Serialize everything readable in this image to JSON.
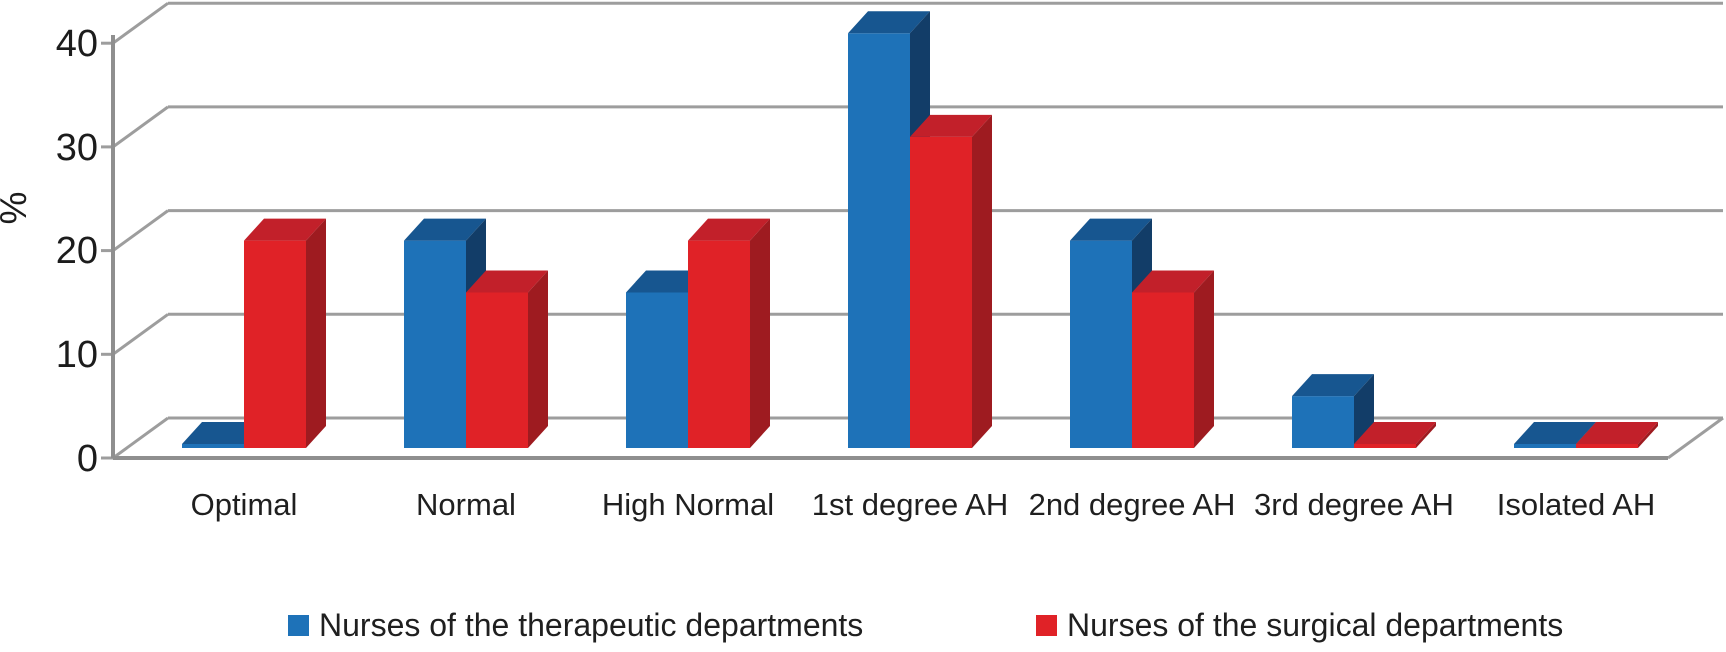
{
  "chart_data": {
    "type": "bar",
    "projection": "3d-clustered",
    "title": "",
    "xlabel": "",
    "ylabel": "%",
    "ylim": [
      0,
      40
    ],
    "yticks": [
      40,
      30,
      20,
      10,
      0
    ],
    "grid": true,
    "legend_position": "bottom",
    "categories": [
      "Optimal",
      "Normal",
      "High Normal",
      "1st degree AH",
      "2nd degree AH",
      "3rd degree AH",
      "Isolated AH"
    ],
    "series": [
      {
        "name": "Nurses of the therapeutic departments",
        "color": "#1E72B8",
        "color_top": "#175690",
        "color_side": "#123D68",
        "values": [
          0,
          20,
          15,
          40,
          20,
          5,
          0
        ]
      },
      {
        "name": "Nurses of the surgical departments",
        "color": "#E02227",
        "color_top": "#C2202A",
        "color_side": "#9E1B20",
        "values": [
          20,
          15,
          20,
          30,
          15,
          0,
          0
        ]
      }
    ],
    "colors": {
      "gridline": "#9d9d9d",
      "axis_line": "#8f8f8f",
      "text": "#1c1c1c"
    }
  }
}
